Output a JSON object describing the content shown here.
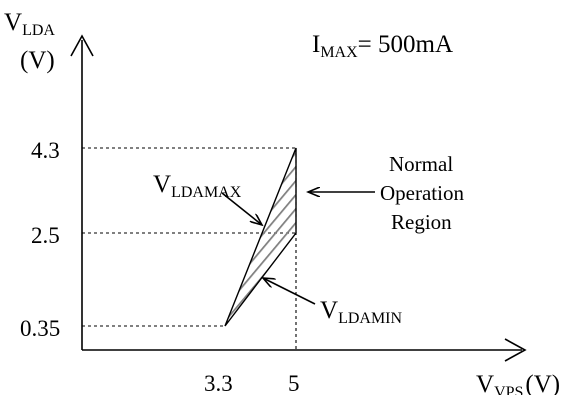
{
  "y_axis": {
    "symbol": "V",
    "subscript": "LDA",
    "unit": "(V)",
    "ticks": [
      "4.3",
      "2.5",
      "0.35"
    ]
  },
  "x_axis": {
    "symbol": "V",
    "subscript": "VPS",
    "unit": "(V)",
    "ticks": [
      "3.3",
      "5"
    ]
  },
  "condition": {
    "symbol": "I",
    "subscript": "MAX",
    "text": "= 500mA"
  },
  "labels": {
    "vldamax": {
      "symbol": "V",
      "subscript": "LDAMAX"
    },
    "vldamin": {
      "symbol": "V",
      "subscript": "LDAMIN"
    },
    "region": [
      "Normal",
      "Operation",
      "Region"
    ]
  },
  "region": {
    "corner_points": [
      {
        "vps": "3.3",
        "vlda": "0.35"
      },
      {
        "vps": "5",
        "vlda": "4.3"
      },
      {
        "vps": "5",
        "vlda": "2.5"
      }
    ]
  },
  "colors": {
    "line": "#000000",
    "hatch": "#808080",
    "background": "#ffffff"
  }
}
